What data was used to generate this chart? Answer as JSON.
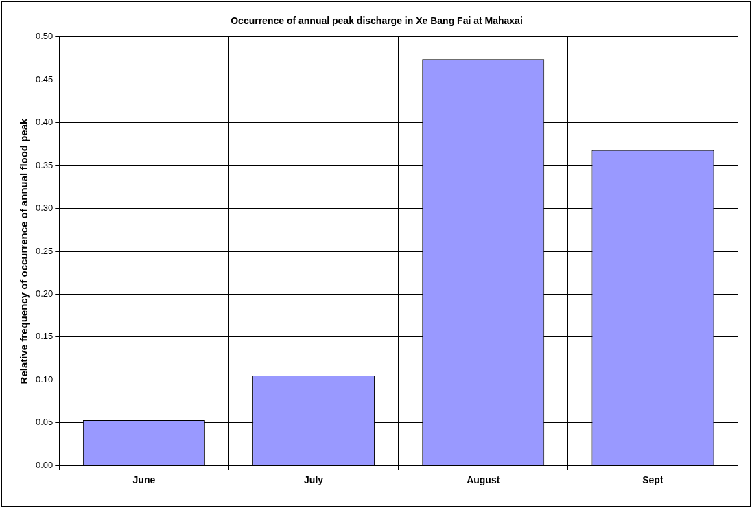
{
  "chart_data": {
    "type": "bar",
    "title": "Occurrence of annual peak discharge in Xe Bang Fai at Mahaxai",
    "ylabel": "Relative frequency of occurrence of annual flood peak",
    "categories": [
      "June",
      "July",
      "August",
      "Sept"
    ],
    "values": [
      0.053,
      0.105,
      0.474,
      0.368
    ],
    "color": "#9999ff",
    "ylim": [
      0,
      0.5
    ],
    "yticks": [
      {
        "value": 0,
        "label": "0.00"
      },
      {
        "value": 0.05,
        "label": "0.05"
      },
      {
        "value": 0.1,
        "label": "0.10"
      },
      {
        "value": 0.15,
        "label": "0.15"
      },
      {
        "value": 0.2,
        "label": "0.20"
      },
      {
        "value": 0.25,
        "label": "0.25"
      },
      {
        "value": 0.3,
        "label": "0.30"
      },
      {
        "value": 0.35,
        "label": "0.35"
      },
      {
        "value": 0.4,
        "label": "0.40"
      },
      {
        "value": 0.45,
        "label": "0.45"
      },
      {
        "value": 0.5,
        "label": "0.50"
      }
    ],
    "grid": true,
    "legend": false
  }
}
